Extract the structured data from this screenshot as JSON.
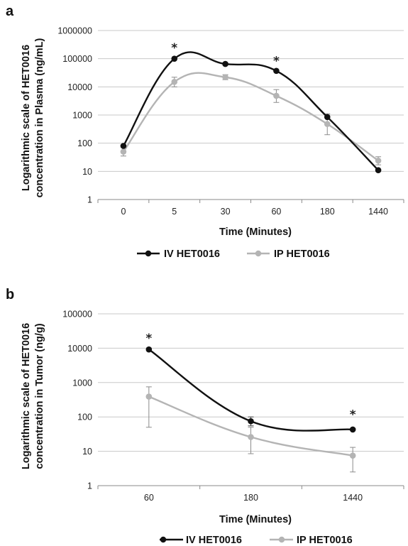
{
  "chart_data": [
    {
      "panel": "a",
      "type": "line",
      "xlabel": "Time (Minutes)",
      "ylabel_line1": "Logarithmic scale of HET0016",
      "ylabel_line2": "concentration in Plasma (ng/mL)",
      "y_scale": "log",
      "ylim": [
        1,
        1000000
      ],
      "y_ticks": [
        "1",
        "10",
        "100",
        "1000",
        "10000",
        "100000",
        "1000000"
      ],
      "categories": [
        "0",
        "5",
        "30",
        "60",
        "180",
        "1440"
      ],
      "series": [
        {
          "name": "IV HET0016",
          "color": "#111111",
          "values": [
            80,
            100000,
            65000,
            37000,
            850,
            11
          ],
          "error": [
            null,
            null,
            null,
            null,
            null,
            null
          ]
        },
        {
          "name": "IP HET0016",
          "color": "#b4b4b4",
          "values": [
            50,
            15000,
            22000,
            4800,
            480,
            24
          ],
          "error": [
            [
              35,
              70
            ],
            [
              10000,
              22000
            ],
            [
              18000,
              27000
            ],
            [
              2800,
              8000
            ],
            [
              200,
              1100
            ],
            [
              17,
              33
            ]
          ]
        }
      ],
      "annotations": [
        {
          "text": "*",
          "category": "5",
          "value": 250000
        },
        {
          "text": "*",
          "category": "60",
          "value": 85000
        }
      ],
      "legend_position": "bottom"
    },
    {
      "panel": "b",
      "type": "line",
      "xlabel": "Time (Minutes)",
      "ylabel_line1": "Logarithmic scale of HET0016",
      "ylabel_line2": "concentration in Tumor (ng/g)",
      "y_scale": "log",
      "ylim": [
        1,
        100000
      ],
      "y_ticks": [
        "1",
        "10",
        "100",
        "1000",
        "10000",
        "100000"
      ],
      "categories": [
        "60",
        "180",
        "1440"
      ],
      "series": [
        {
          "name": "IV HET0016",
          "color": "#111111",
          "values": [
            9200,
            75,
            43
          ],
          "error": [
            null,
            [
              55,
              100
            ],
            null
          ]
        },
        {
          "name": "IP HET0016",
          "color": "#b4b4b4",
          "values": [
            390,
            26,
            7.5
          ],
          "error": [
            [
              50,
              750
            ],
            [
              8.5,
              50
            ],
            [
              2.5,
              13
            ]
          ]
        }
      ],
      "annotations": [
        {
          "text": "*",
          "category": "60",
          "value": 20000
        },
        {
          "text": "*",
          "category": "1440",
          "value": 120
        }
      ],
      "legend_position": "bottom"
    }
  ]
}
